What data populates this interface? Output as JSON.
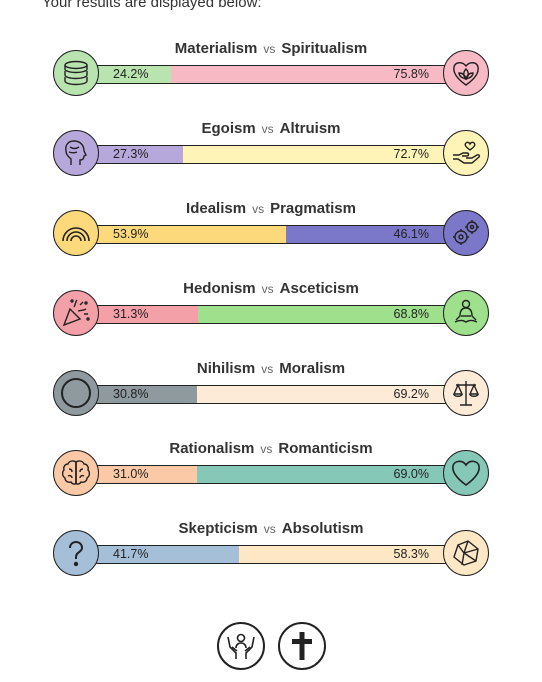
{
  "intro": "Your results are displayed below:",
  "vs_label": "vs",
  "axes": [
    {
      "left": "Materialism",
      "right": "Spiritualism",
      "left_pct": "24.2%",
      "right_pct": "75.8%",
      "left_value": 24.2,
      "left_color": "#b9e4b0",
      "right_color": "#f7b9c4",
      "left_icon": "coins-icon",
      "right_icon": "lotus-heart-icon"
    },
    {
      "left": "Egoism",
      "right": "Altruism",
      "left_pct": "27.3%",
      "right_pct": "72.7%",
      "left_value": 27.3,
      "left_color": "#b7a8dc",
      "right_color": "#fff4b8",
      "left_icon": "head-profile-icon",
      "right_icon": "helping-hand-icon"
    },
    {
      "left": "Idealism",
      "right": "Pragmatism",
      "left_pct": "53.9%",
      "right_pct": "46.1%",
      "left_value": 53.9,
      "left_color": "#fcd97a",
      "right_color": "#7b77c9",
      "left_icon": "rainbow-icon",
      "right_icon": "gears-icon"
    },
    {
      "left": "Hedonism",
      "right": "Asceticism",
      "left_pct": "31.3%",
      "right_pct": "68.8%",
      "left_value": 31.3,
      "left_color": "#f4a0a8",
      "right_color": "#9ee08b",
      "left_icon": "party-popper-icon",
      "right_icon": "meditation-icon"
    },
    {
      "left": "Nihilism",
      "right": "Moralism",
      "left_pct": "30.8%",
      "right_pct": "69.2%",
      "left_value": 30.8,
      "left_color": "#8e9a9e",
      "right_color": "#fdebd8",
      "left_icon": "void-circle-icon",
      "right_icon": "scales-icon"
    },
    {
      "left": "Rationalism",
      "right": "Romanticism",
      "left_pct": "31.0%",
      "right_pct": "69.0%",
      "left_value": 31.0,
      "left_color": "#fcc9a6",
      "right_color": "#86c8b8",
      "left_icon": "brain-icon",
      "right_icon": "heart-icon"
    },
    {
      "left": "Skepticism",
      "right": "Absolutism",
      "left_pct": "41.7%",
      "right_pct": "58.3%",
      "left_value": 41.7,
      "left_color": "#a5bfd9",
      "right_color": "#fde7c4",
      "left_icon": "question-mark-icon",
      "right_icon": "rock-icon"
    }
  ],
  "footer_icons": [
    "caring-hands-icon",
    "cross-icon"
  ]
}
